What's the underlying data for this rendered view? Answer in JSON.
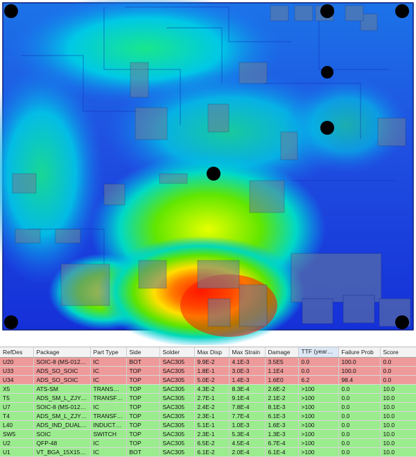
{
  "visualization": {
    "description_hidden": "",
    "board_color": "#2a55d6",
    "hotspot_colors": [
      "#ff2a00",
      "#ffd400",
      "#54e000",
      "#00c7d6",
      "#0a2cf0"
    ]
  },
  "grid": {
    "sort_column": "TTF (years)",
    "sort_direction": "asc",
    "columns": [
      "RefDes",
      "Package",
      "Part Type",
      "Side",
      "Solder",
      "Max Disp",
      "Max Strain",
      "Damage",
      "TTF (years)",
      "Failure Prob",
      "Score"
    ],
    "rows": [
      {
        "status": "fail",
        "cells": [
          "U20",
          "SOIC-8 (MS-012AA)",
          "IC",
          "BOT",
          "SAC305",
          "9.9E-2",
          "4.1E-3",
          "3.5E5",
          "0.0",
          "100.0",
          "0.0"
        ]
      },
      {
        "status": "fail",
        "cells": [
          "U33",
          "ADS_SO_SOIC",
          "IC",
          "TOP",
          "SAC305",
          "1.8E-1",
          "3.0E-3",
          "1.1E4",
          "0.0",
          "100.0",
          "0.0"
        ]
      },
      {
        "status": "fail",
        "cells": [
          "U34",
          "ADS_SO_SOIC",
          "IC",
          "TOP",
          "SAC305",
          "5.0E-2",
          "1.4E-3",
          "1.6E0",
          "6.2",
          "98.4",
          "0.0"
        ]
      },
      {
        "status": "pass",
        "cells": [
          "X5",
          "ATS-SM",
          "TRANSDU...",
          "TOP",
          "SAC305",
          "4.3E-2",
          "8.3E-4",
          "2.6E-2",
          ">100",
          "0.0",
          "10.0"
        ]
      },
      {
        "status": "pass",
        "cells": [
          "T5",
          "ADS_SM_L_ZJYS51R5",
          "TRANSFOR...",
          "TOP",
          "SAC305",
          "2.7E-1",
          "9.1E-4",
          "2.1E-2",
          ">100",
          "0.0",
          "10.0"
        ]
      },
      {
        "status": "pass",
        "cells": [
          "U7",
          "SOIC-8 (MS-012AA)",
          "IC",
          "TOP",
          "SAC305",
          "2.4E-2",
          "7.8E-4",
          "8.1E-3",
          ">100",
          "0.0",
          "10.0"
        ]
      },
      {
        "status": "pass",
        "cells": [
          "T4",
          "ADS_SM_L_ZJYS51R5",
          "TRANSFOR...",
          "TOP",
          "SAC305",
          "2.3E-1",
          "7.7E-4",
          "6.1E-3",
          ">100",
          "0.0",
          "10.0"
        ]
      },
      {
        "status": "pass",
        "cells": [
          "L40",
          "ADS_IND_DUAL-FI...",
          "INDUCTOR",
          "TOP",
          "SAC305",
          "5.1E-1",
          "1.0E-3",
          "1.6E-3",
          ">100",
          "0.0",
          "10.0"
        ]
      },
      {
        "status": "pass",
        "cells": [
          "SW5",
          "SOIC",
          "SWITCH",
          "TOP",
          "SAC305",
          "2.3E-1",
          "5.3E-4",
          "1.3E-3",
          ">100",
          "0.0",
          "10.0"
        ]
      },
      {
        "status": "pass",
        "cells": [
          "U2",
          "QFP-48",
          "IC",
          "TOP",
          "SAC305",
          "6.5E-2",
          "4.5E-4",
          "6.7E-4",
          ">100",
          "0.0",
          "10.0"
        ]
      },
      {
        "status": "pass",
        "cells": [
          "U1",
          "VT_BGA_15X15_39...",
          "IC",
          "BOT",
          "SAC305",
          "6.1E-2",
          "2.0E-4",
          "6.1E-4",
          ">100",
          "0.0",
          "10.0"
        ]
      }
    ]
  }
}
